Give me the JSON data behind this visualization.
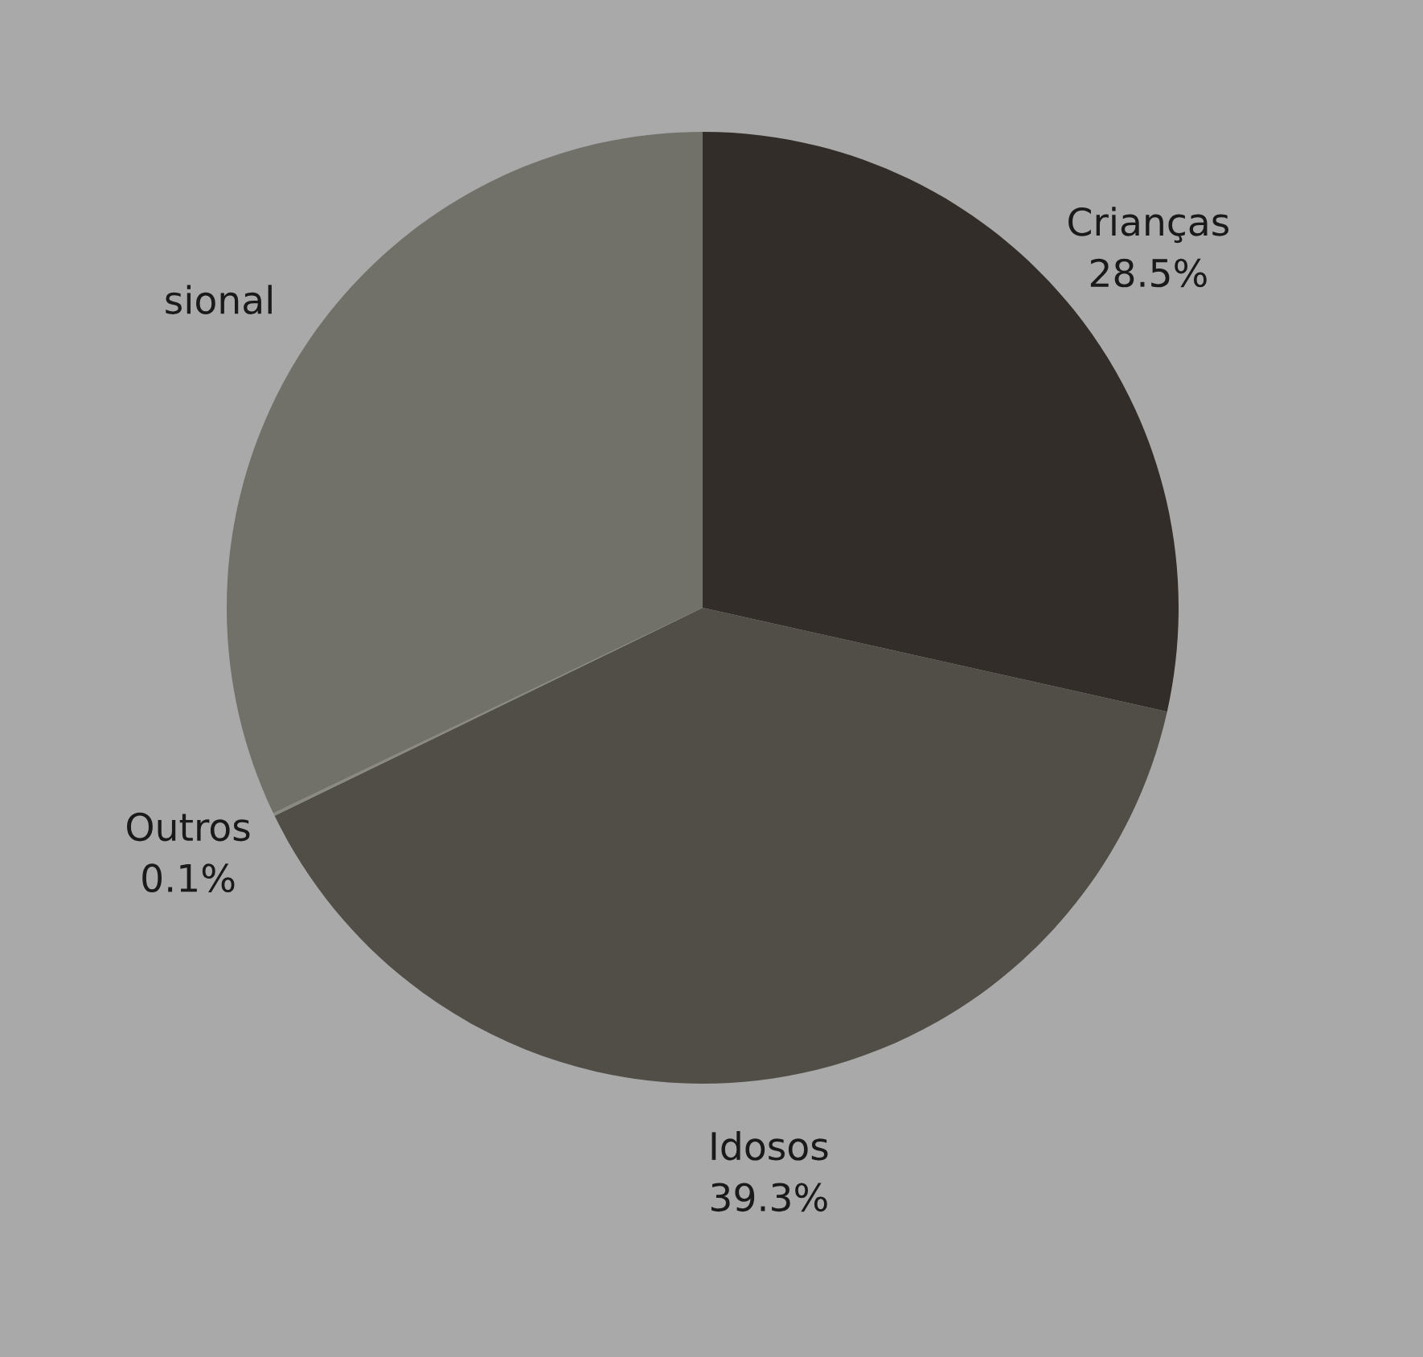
{
  "chart_data": {
    "type": "pie",
    "categories": [
      "Crianças",
      "Idosos",
      "Outros",
      "sional"
    ],
    "values": [
      28.5,
      39.3,
      0.1,
      32.1
    ],
    "value_labels": [
      "28.5%",
      "39.3%",
      "0.1%",
      null
    ],
    "colors": [
      "#322d29",
      "#514e47",
      "#8a8a80",
      "#71716a"
    ]
  }
}
